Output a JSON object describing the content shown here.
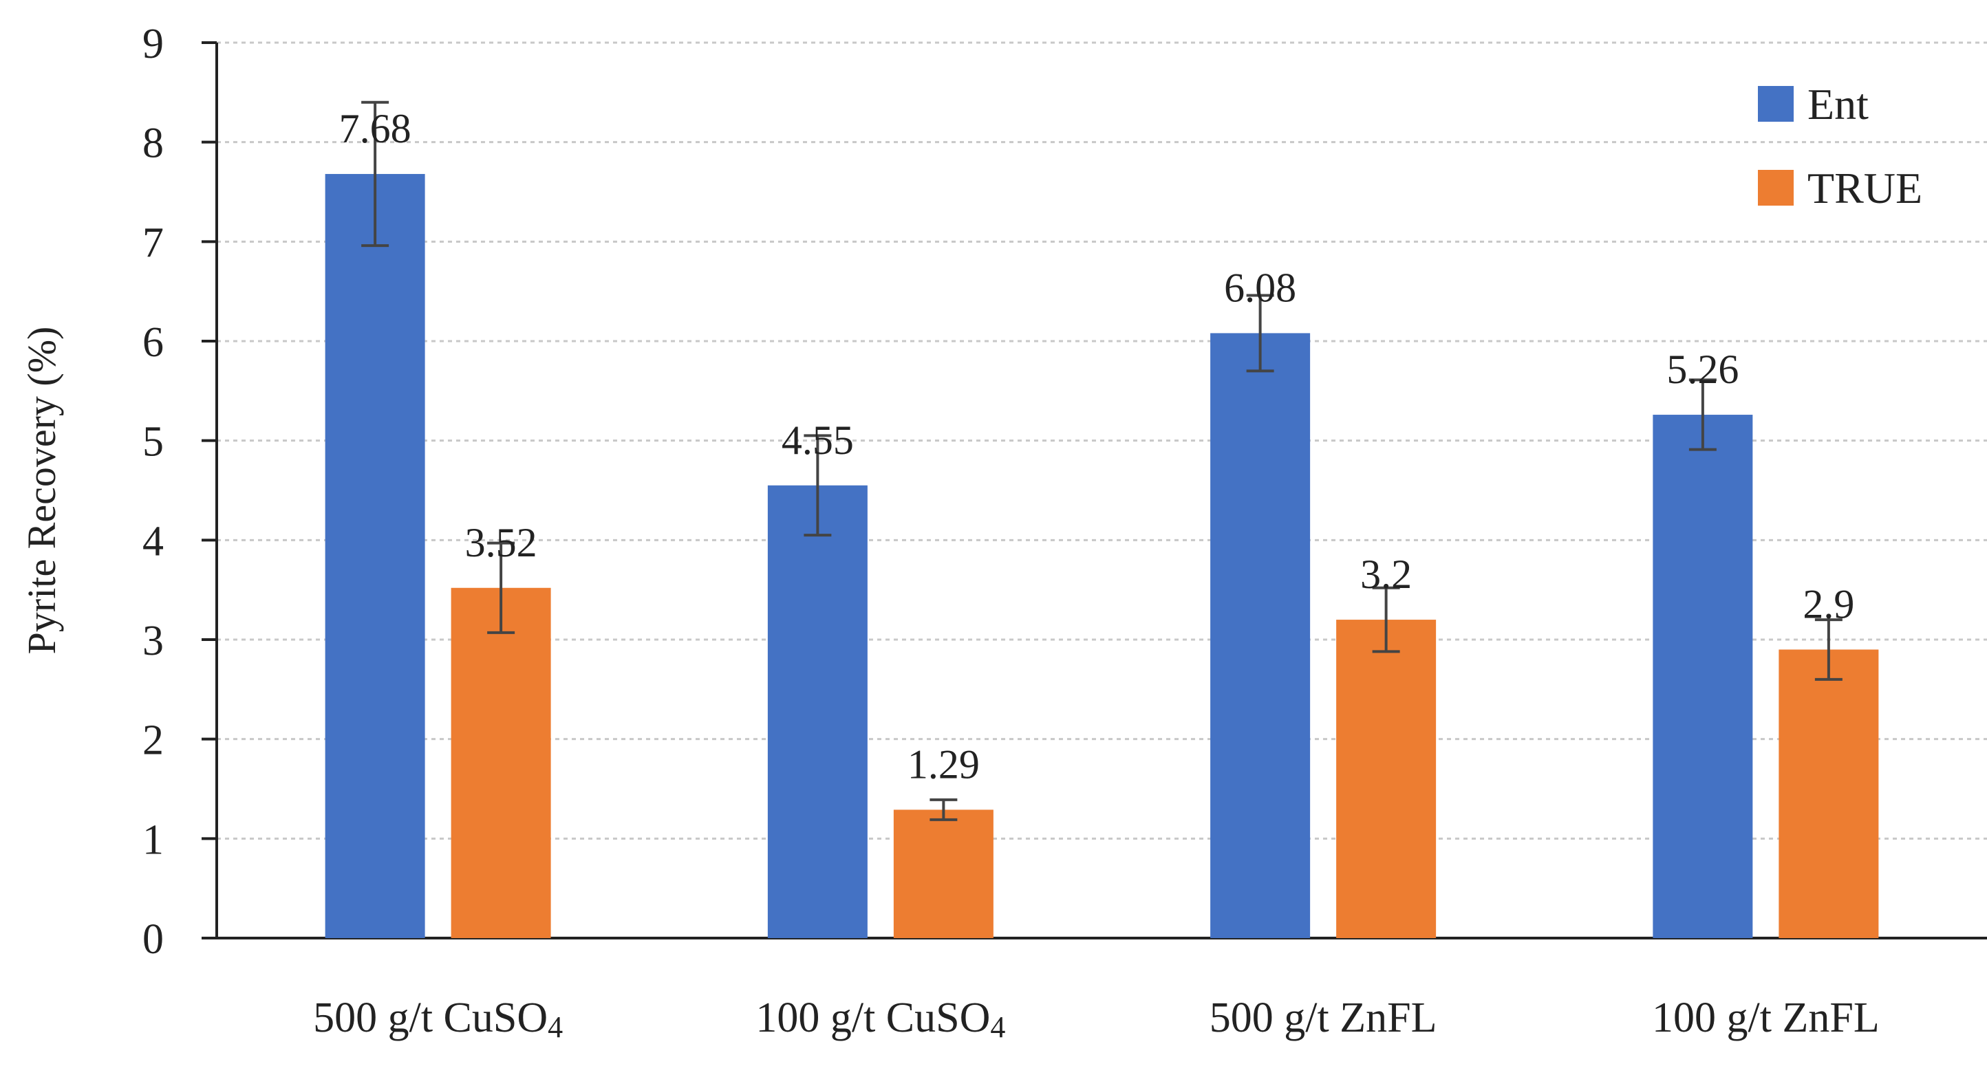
{
  "chart_data": {
    "type": "bar",
    "title": "",
    "xlabel": "",
    "ylabel": "Pyrite Recovery (%)",
    "ylim": [
      0,
      9
    ],
    "yticks": [
      0,
      1,
      2,
      3,
      4,
      5,
      6,
      7,
      8,
      9
    ],
    "grid": true,
    "legend_position": "top-right",
    "categories": [
      {
        "main": "500 g/t CuSO",
        "sub": "4"
      },
      {
        "main": "100 g/t CuSO",
        "sub": "4"
      },
      {
        "main": "500 g/t ZnFL",
        "sub": ""
      },
      {
        "main": "100 g/t ZnFL",
        "sub": ""
      }
    ],
    "series": [
      {
        "name": "Ent",
        "color": "#4472C4",
        "values": [
          7.68,
          4.55,
          6.08,
          5.26
        ],
        "labels": [
          "7.68",
          "4.55",
          "6.08",
          "5.26"
        ],
        "error": [
          0.72,
          0.5,
          0.38,
          0.35
        ]
      },
      {
        "name": "TRUE",
        "color": "#ED7D31",
        "values": [
          3.52,
          1.29,
          3.2,
          2.9
        ],
        "labels": [
          "3.52",
          "1.29",
          "3.2",
          "2.9"
        ],
        "error": [
          0.45,
          0.1,
          0.32,
          0.3
        ]
      }
    ]
  }
}
